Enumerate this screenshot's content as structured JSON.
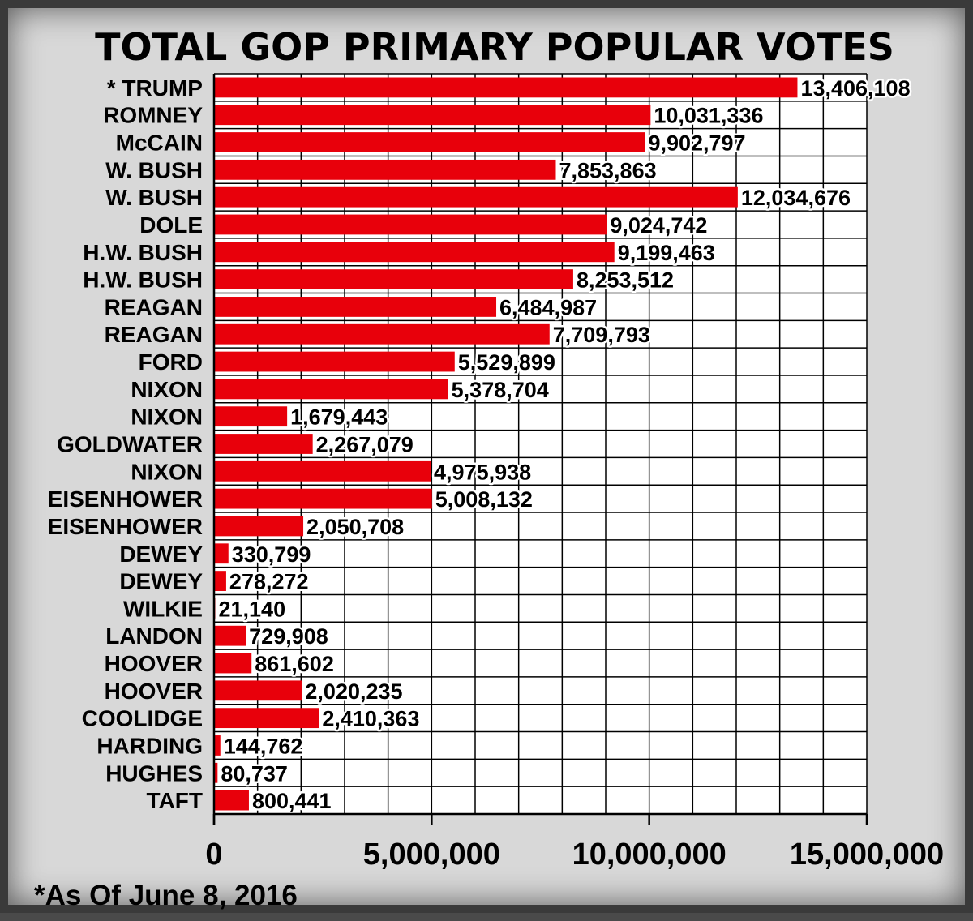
{
  "chart_data": {
    "type": "bar",
    "orientation": "horizontal",
    "title": "TOTAL GOP PRIMARY POPULAR VOTES",
    "categories": [
      "* TRUMP",
      "ROMNEY",
      "McCAIN",
      "W. BUSH",
      "W. BUSH",
      "DOLE",
      "H.W. BUSH",
      "H.W. BUSH",
      "REAGAN",
      "REAGAN",
      "FORD",
      "NIXON",
      "NIXON",
      "GOLDWATER",
      "NIXON",
      "EISENHOWER",
      "EISENHOWER",
      "DEWEY",
      "DEWEY",
      "WILKIE",
      "LANDON",
      "HOOVER",
      "HOOVER",
      "COOLIDGE",
      "HARDING",
      "HUGHES",
      "TAFT"
    ],
    "values": [
      13406108,
      10031336,
      9902797,
      7853863,
      12034676,
      9024742,
      9199463,
      8253512,
      6484987,
      7709793,
      5529899,
      5378704,
      1679443,
      2267079,
      4975938,
      5008132,
      2050708,
      330799,
      278272,
      21140,
      729908,
      861602,
      2020235,
      2410363,
      144762,
      80737,
      800441
    ],
    "value_labels": [
      "13,406,108",
      "10,031,336",
      "9,902,797",
      "7,853,863",
      "12,034,676",
      "9,024,742",
      "9,199,463",
      "8,253,512",
      "6,484,987",
      "7,709,793",
      "5,529,899",
      "5,378,704",
      "1,679,443",
      "2,267,079",
      "4,975,938",
      "5,008,132",
      "2,050,708",
      "330,799",
      "278,272",
      "21,140",
      "729,908",
      "861,602",
      "2,020,235",
      "2,410,363",
      "144,762",
      "80,737",
      "800,441"
    ],
    "xlim": [
      0,
      15000000
    ],
    "x_ticks": [
      0,
      5000000,
      10000000,
      15000000
    ],
    "x_tick_labels": [
      "0",
      "5,000,000",
      "10,000,000",
      "15,000,000"
    ],
    "grid": true,
    "xlabel": "",
    "ylabel": "",
    "bar_color": "#e8000b",
    "footnote": "*As Of June 8, 2016"
  }
}
